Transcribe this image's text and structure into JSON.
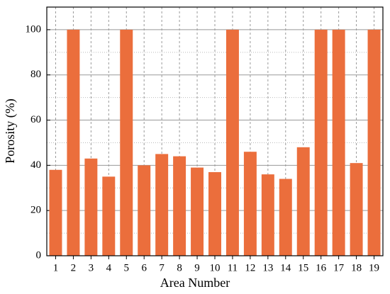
{
  "chart_data": {
    "type": "bar",
    "xlabel": "Area Number",
    "ylabel": "Porosity (%)",
    "categories": [
      "1",
      "2",
      "3",
      "4",
      "5",
      "6",
      "7",
      "8",
      "9",
      "10",
      "11",
      "12",
      "13",
      "14",
      "15",
      "16",
      "17",
      "18",
      "19"
    ],
    "values": [
      38,
      100,
      43,
      35,
      100,
      40,
      45,
      44,
      39,
      37,
      100,
      46,
      36,
      34,
      48,
      100,
      100,
      41,
      100
    ],
    "color": "#eb6e3c",
    "ylim": [
      0,
      110
    ],
    "yticks": [
      0,
      20,
      40,
      60,
      80,
      100
    ],
    "grid": true
  }
}
